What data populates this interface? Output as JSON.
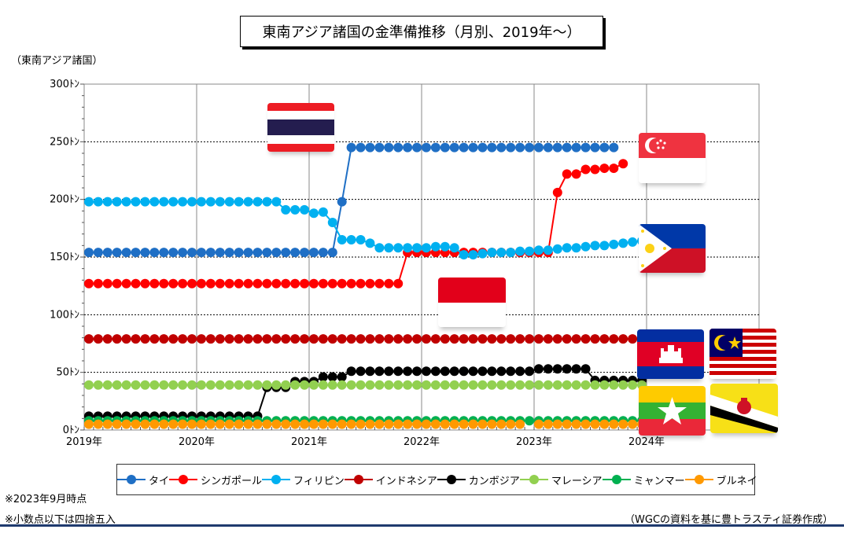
{
  "header": {
    "title": "東南アジア諸国の金準備推移（月別、2019年～）",
    "y_unit": "（東南アジア諸国）"
  },
  "notes": {
    "note1": "※2023年9月時点",
    "note2": "※小数点以下は四捨五入",
    "source": "（WGCの資料を基に豊トラスティ証券作成）"
  },
  "flags": [
    "thailand-flag",
    "singapore-flag",
    "philippines-flag",
    "indonesia-flag",
    "cambodia-flag",
    "malaysia-flag",
    "myanmar-flag",
    "brunei-flag"
  ],
  "chart_data": {
    "type": "line",
    "x_labels": [
      "2019年",
      "2020年",
      "2021年",
      "2022年",
      "2023年",
      "2024年"
    ],
    "y_ticks": [
      "0ﾄﾝ",
      "50ﾄﾝ",
      "100ﾄﾝ",
      "150ﾄﾝ",
      "200ﾄﾝ",
      "250ﾄﾝ",
      "300ﾄﾝ"
    ],
    "ylim": [
      0,
      300
    ],
    "x_range": [
      "2019-01",
      "2024-12"
    ],
    "grid": true,
    "legend_position": "bottom",
    "series": [
      {
        "name": "タイ",
        "color": "#1f6fc5",
        "segments": [
          {
            "start": "2019-01",
            "values": [
              154,
              154,
              154,
              154,
              154,
              154,
              154,
              154,
              154,
              154,
              154,
              154,
              154,
              154,
              154,
              154,
              154,
              154,
              154,
              154,
              154,
              154,
              154,
              154,
              154,
              154,
              154,
              198,
              245,
              245,
              245,
              245,
              245,
              245,
              245,
              245,
              245,
              245,
              245,
              245,
              245,
              245,
              245,
              245,
              245,
              245,
              245,
              245,
              245,
              245,
              245,
              245,
              245,
              245,
              245,
              245,
              245
            ]
          }
        ]
      },
      {
        "name": "シンガポール",
        "color": "#ff0000",
        "segments": [
          {
            "start": "2019-01",
            "values": [
              127,
              127,
              127,
              127,
              127,
              127,
              127,
              127,
              127,
              127,
              127,
              127,
              127,
              127,
              127,
              127,
              127,
              127,
              127,
              127,
              127,
              127,
              127,
              127,
              127,
              127,
              127,
              127,
              127,
              127,
              127,
              127,
              127,
              127,
              154,
              154,
              154,
              154,
              154,
              154,
              154,
              154,
              154,
              154,
              154,
              154,
              154,
              154,
              154,
              154,
              206,
              222,
              222,
              226,
              226,
              227,
              227,
              231
            ]
          }
        ]
      },
      {
        "name": "フィリピン",
        "color": "#00b0f0",
        "segments": [
          {
            "start": "2019-01",
            "values": [
              198,
              198,
              198,
              198,
              198,
              198,
              198,
              198,
              198,
              198,
              198,
              198,
              198,
              198,
              198,
              198,
              198,
              198,
              198,
              198,
              198,
              191,
              191,
              191,
              188,
              189,
              180,
              165,
              165,
              165,
              162,
              158,
              158,
              158,
              158,
              158,
              158,
              159,
              159,
              158,
              152,
              152,
              153,
              154,
              154,
              154,
              155,
              155,
              156,
              156,
              157,
              158,
              158,
              159,
              160,
              160,
              161,
              162,
              163,
              164
            ]
          }
        ]
      },
      {
        "name": "インドネシア",
        "color": "#c00000",
        "segments": [
          {
            "start": "2019-01",
            "values": [
              79,
              79,
              79,
              79,
              79,
              79,
              79,
              79,
              79,
              79,
              79,
              79,
              79,
              79,
              79,
              79,
              79,
              79,
              79,
              79,
              79,
              79,
              79,
              79,
              79,
              79,
              79,
              79,
              79,
              79,
              79,
              79,
              79,
              79,
              79,
              79,
              79,
              79,
              79,
              79,
              79,
              79,
              79,
              79,
              79,
              79,
              79,
              79,
              79,
              79,
              79,
              79,
              79,
              79,
              79,
              79,
              79,
              79,
              79,
              79
            ]
          }
        ]
      },
      {
        "name": "カンボジア",
        "color": "#000000",
        "segments": [
          {
            "start": "2019-01",
            "values": [
              12,
              12,
              12,
              12,
              12,
              12,
              12,
              12,
              12,
              12,
              12,
              12,
              12,
              12,
              12,
              12,
              12,
              12,
              12,
              37,
              37,
              37,
              42,
              42,
              42,
              46,
              46,
              46,
              51,
              51,
              51,
              51,
              51,
              51,
              51,
              51,
              51,
              51,
              51,
              51,
              51,
              51,
              51,
              51,
              51,
              51,
              51,
              51,
              53,
              53,
              53,
              53,
              53,
              53,
              43,
              43,
              43,
              43,
              43,
              43
            ]
          }
        ]
      },
      {
        "name": "マレーシア",
        "color": "#92d050",
        "segments": [
          {
            "start": "2019-01",
            "values": [
              39,
              39,
              39,
              39,
              39,
              39,
              39,
              39,
              39,
              39,
              39,
              39,
              39,
              39,
              39,
              39,
              39,
              39,
              39,
              39,
              39,
              39,
              39,
              39,
              39,
              39,
              39,
              39,
              39,
              39,
              39,
              39,
              39,
              39,
              39,
              39,
              39,
              39,
              39,
              39,
              39,
              39,
              39,
              39,
              39,
              39,
              39,
              39,
              39,
              39,
              39,
              39,
              39,
              39,
              39,
              39,
              39,
              39,
              39,
              39
            ]
          }
        ]
      },
      {
        "name": "ミャンマー",
        "color": "#00b050",
        "segments": [
          {
            "start": "2019-01",
            "values": [
              8,
              8,
              8,
              8,
              8,
              8,
              8,
              8,
              8,
              8,
              8,
              8,
              8,
              8,
              8,
              8,
              8,
              8,
              8,
              8,
              8,
              8,
              8,
              8,
              8,
              8,
              8,
              8,
              8,
              8,
              8,
              8,
              8,
              8,
              8,
              8,
              8,
              8,
              8,
              8,
              8,
              8,
              8,
              8,
              8,
              8,
              8,
              8,
              8,
              8,
              8,
              8,
              8,
              8,
              8,
              8,
              8,
              8,
              8,
              8
            ]
          }
        ]
      },
      {
        "name": "ブルネイ",
        "color": "#ff9900",
        "segments": [
          {
            "start": "2019-01",
            "values": [
              5,
              5,
              5,
              5,
              5,
              5,
              5,
              5,
              5,
              5,
              5,
              5,
              5,
              5,
              5,
              5,
              5,
              5,
              5,
              5,
              5,
              5,
              5,
              5,
              5,
              5,
              5,
              5,
              5,
              5,
              5,
              5,
              5,
              5,
              5,
              5,
              5,
              5,
              5,
              5,
              5,
              5,
              5,
              5,
              5,
              5,
              5
            ]
          },
          {
            "start": "2023-01",
            "values": [
              5,
              5,
              5,
              5,
              5,
              5,
              5,
              5,
              5,
              5,
              5,
              5
            ]
          }
        ]
      }
    ]
  }
}
